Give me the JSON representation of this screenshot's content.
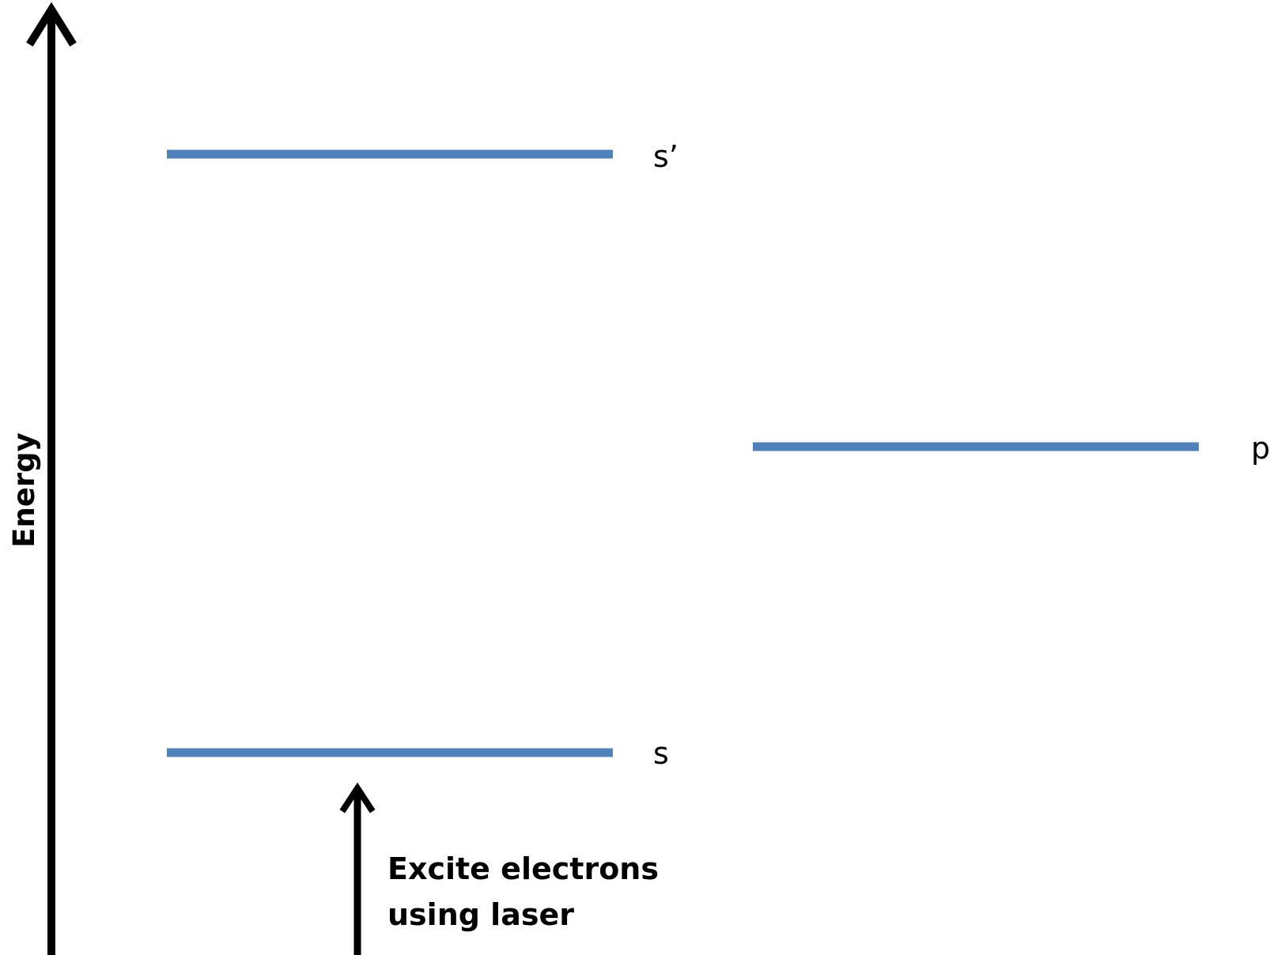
{
  "axis": {
    "label": "Energy"
  },
  "colors": {
    "level_line": "#4f81bd",
    "arrow": "#000000"
  },
  "levels": [
    {
      "id": "s-prime",
      "label": "s’"
    },
    {
      "id": "p",
      "label": "p"
    },
    {
      "id": "s",
      "label": "s"
    }
  ],
  "annotation": {
    "line1": "Excite electrons",
    "line2": "using laser"
  }
}
